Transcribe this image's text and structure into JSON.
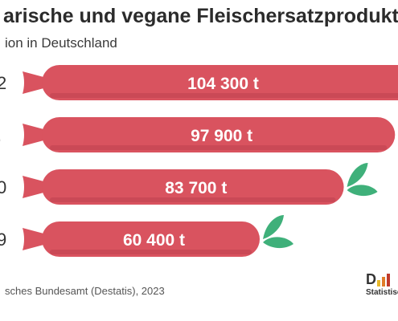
{
  "header": {
    "title": "arische und vegane Fleischersatzprodukte",
    "subtitle": "ion in Deutschland"
  },
  "footer": {
    "source": "sches Bundesamt (Destatis), 2023",
    "logo_letter": "D",
    "logo_text": "Statistisc"
  },
  "colors": {
    "sausage": "#d9535f",
    "sausage_shade": "#b83f4b",
    "leaf": "#3fb07a",
    "logo_bars": [
      "#e8b92c",
      "#e07d2a",
      "#c0392b"
    ]
  },
  "chart_data": {
    "type": "bar",
    "orientation": "horizontal",
    "unit": "t",
    "categories": [
      "2",
      ".",
      "0",
      "9"
    ],
    "values": [
      104300,
      97900,
      83700,
      60400
    ],
    "value_labels": [
      "104 300 t",
      "97 900 t",
      "83 700 t",
      "60 400 t"
    ],
    "xlim": [
      0,
      104300
    ],
    "grid": false
  }
}
